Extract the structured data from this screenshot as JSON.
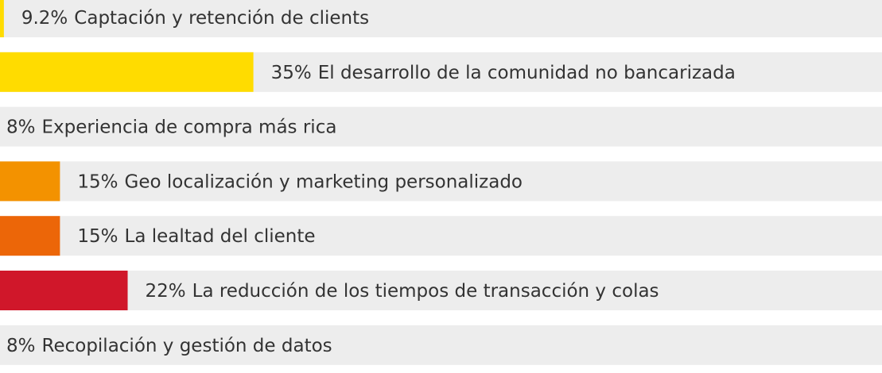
{
  "chart_data": {
    "type": "hbar",
    "categories": [
      "Captación y retención de clients",
      "El desarrollo de la comunidad no bancarizada",
      "Experiencia de compra más rica",
      "Geo localización y marketing personalizado",
      "La lealtad del cliente",
      "La reducción de los tiempos de transacción y colas",
      "Recopilación y gestión de datos"
    ],
    "values": [
      9.2,
      35,
      8,
      15,
      15,
      22,
      8
    ],
    "value_labels": [
      "9.2%",
      "35%",
      "8%",
      "15%",
      "15%",
      "22%",
      "8%"
    ],
    "colors": [
      "#ffdc00",
      "#ffdc00",
      "#f7a600",
      "#f39200",
      "#ec6608",
      "#d0172a",
      "#d0172a"
    ],
    "xlim": [
      8.8,
      100
    ]
  }
}
